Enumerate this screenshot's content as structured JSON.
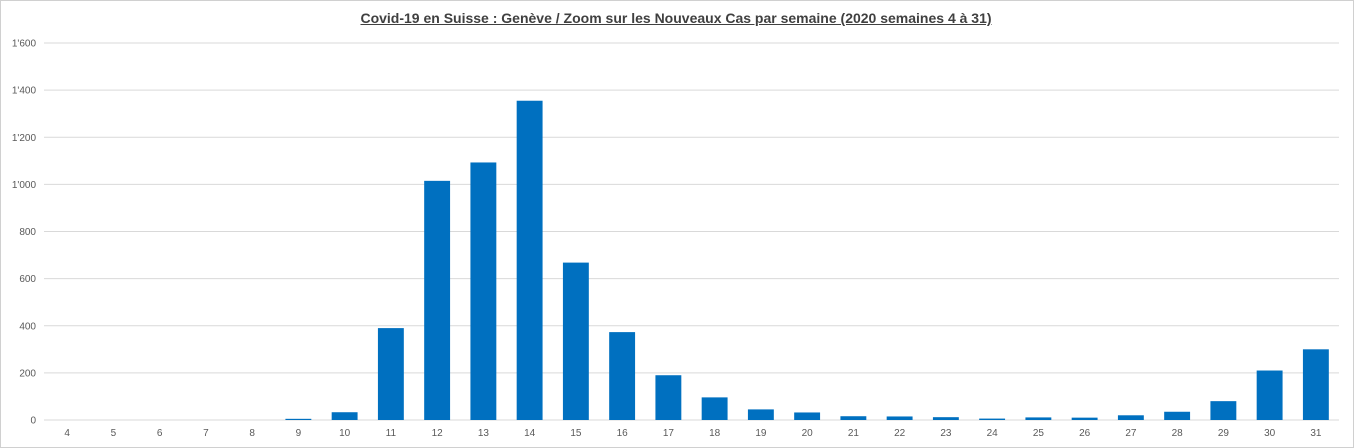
{
  "chart_data": {
    "type": "bar",
    "title": "Covid-19 en Suisse : Genève / Zoom sur les Nouveaux Cas par semaine (2020 semaines 4 à 31)",
    "xlabel": "",
    "ylabel": "",
    "categories": [
      "4",
      "5",
      "6",
      "7",
      "8",
      "9",
      "10",
      "11",
      "12",
      "13",
      "14",
      "15",
      "16",
      "17",
      "18",
      "19",
      "20",
      "21",
      "22",
      "23",
      "24",
      "25",
      "26",
      "27",
      "28",
      "29",
      "30",
      "31"
    ],
    "values": [
      0,
      0,
      0,
      0,
      0,
      5,
      33,
      390,
      1015,
      1093,
      1355,
      668,
      373,
      190,
      96,
      45,
      32,
      16,
      15,
      12,
      6,
      11,
      10,
      20,
      35,
      80,
      210,
      300
    ],
    "ylim": [
      0,
      1600
    ],
    "yticks": [
      0,
      200,
      400,
      600,
      800,
      1000,
      1200,
      1400,
      1600
    ],
    "ytick_labels": [
      "0",
      "200",
      "400",
      "600",
      "800",
      "1'000",
      "1'200",
      "1'400",
      "1'600"
    ],
    "grid": true,
    "bar_color": "#0070C0",
    "grid_color": "#D9D9D9"
  }
}
